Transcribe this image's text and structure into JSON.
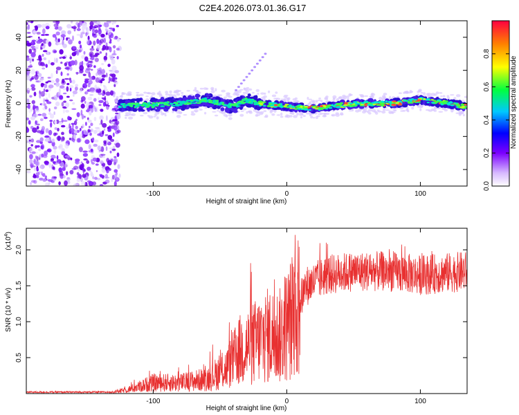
{
  "title": "C2E4.2026.073.01.36.G17",
  "chart_data": [
    {
      "type": "heatmap",
      "xlabel": "Height of straight line (km)",
      "ylabel": "Frequency (Hz)",
      "xlim": [
        -195,
        135
      ],
      "ylim": [
        -50,
        50
      ],
      "xticks": [
        -100,
        0,
        100
      ],
      "xtick_labels": [
        "-100",
        "0",
        "100"
      ],
      "yticks": [
        -40,
        -20,
        0,
        20,
        40
      ],
      "ytick_labels": [
        "-40",
        "-20",
        "0",
        "20",
        "40"
      ],
      "noise_region_x": [
        -195,
        -125
      ],
      "signal_start_x": -125,
      "ridge": [
        {
          "x": -125,
          "y": -1
        },
        {
          "x": -100,
          "y": -1
        },
        {
          "x": -80,
          "y": 0
        },
        {
          "x": -60,
          "y": 2
        },
        {
          "x": -50,
          "y": 0
        },
        {
          "x": -40,
          "y": -2
        },
        {
          "x": -30,
          "y": 2
        },
        {
          "x": -20,
          "y": 0
        },
        {
          "x": 0,
          "y": -2
        },
        {
          "x": 20,
          "y": -3
        },
        {
          "x": 40,
          "y": -1
        },
        {
          "x": 60,
          "y": 0
        },
        {
          "x": 80,
          "y": 0
        },
        {
          "x": 100,
          "y": 2
        },
        {
          "x": 120,
          "y": 0
        },
        {
          "x": 135,
          "y": -2
        }
      ],
      "colorbar": {
        "label": "Normalized spectral amplitude",
        "range": [
          0,
          1
        ],
        "ticks": [
          0.0,
          0.2,
          0.4,
          0.6,
          0.8
        ],
        "tick_labels": [
          "0.0",
          "0.2",
          "0.4",
          "0.6",
          "0.8"
        ],
        "stops": [
          "#ffffff",
          "#7b00ff",
          "#0000ff",
          "#00ffff",
          "#00ff00",
          "#ffff00",
          "#ff8000",
          "#ff0000"
        ]
      }
    },
    {
      "type": "line",
      "xlabel": "Height of straight line (km)",
      "ylabel": "SNR (10 * v/v)",
      "exponent_label": "(x10",
      "exponent_power": "4",
      "exponent_close": ")",
      "xlim": [
        -195,
        135
      ],
      "ylim": [
        0,
        2.3
      ],
      "xticks": [
        -100,
        0,
        100
      ],
      "xtick_labels": [
        "-100",
        "0",
        "100"
      ],
      "yticks": [
        0.5,
        1.0,
        1.5,
        2.0
      ],
      "ytick_labels": [
        "0.5",
        "1.0",
        "1.5",
        "2.0"
      ],
      "color": "#e83030",
      "envelope": [
        {
          "x": -195,
          "y": 0.02
        },
        {
          "x": -130,
          "y": 0.02
        },
        {
          "x": -120,
          "y": 0.05
        },
        {
          "x": -100,
          "y": 0.15
        },
        {
          "x": -80,
          "y": 0.15
        },
        {
          "x": -60,
          "y": 0.2
        },
        {
          "x": -45,
          "y": 0.35
        },
        {
          "x": -35,
          "y": 0.6
        },
        {
          "x": -25,
          "y": 0.7
        },
        {
          "x": -15,
          "y": 0.8
        },
        {
          "x": -5,
          "y": 0.8
        },
        {
          "x": 5,
          "y": 1.1
        },
        {
          "x": 15,
          "y": 1.5
        },
        {
          "x": 30,
          "y": 1.65
        },
        {
          "x": 50,
          "y": 1.7
        },
        {
          "x": 75,
          "y": 1.7
        },
        {
          "x": 100,
          "y": 1.65
        },
        {
          "x": 135,
          "y": 1.7
        }
      ]
    }
  ]
}
